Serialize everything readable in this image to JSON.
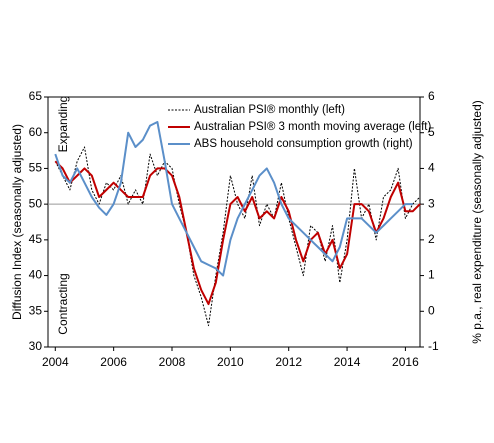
{
  "chart_data": {
    "type": "line",
    "y_label": "Diffusion Index (seasonally adjusted)",
    "y2_label": "% p.a., real expenditure (seasonally adjusted)",
    "annotations": [
      "Expanding",
      "Contracting"
    ],
    "hline": 50,
    "x": [
      2004,
      2004.25,
      2004.5,
      2004.75,
      2005,
      2005.25,
      2005.5,
      2005.75,
      2006,
      2006.25,
      2006.5,
      2006.75,
      2007,
      2007.25,
      2007.5,
      2007.75,
      2008,
      2008.25,
      2008.5,
      2008.75,
      2009,
      2009.25,
      2009.5,
      2009.75,
      2010,
      2010.25,
      2010.5,
      2010.75,
      2011,
      2011.25,
      2011.5,
      2011.75,
      2012,
      2012.25,
      2012.5,
      2012.75,
      2013,
      2013.25,
      2013.5,
      2013.75,
      2014,
      2014.25,
      2014.5,
      2014.75,
      2015,
      2015.25,
      2015.5,
      2015.75,
      2016,
      2016.25,
      2016.5
    ],
    "xlim": [
      2003.75,
      2016.5
    ],
    "xticks": [
      2004,
      2006,
      2008,
      2010,
      2012,
      2014,
      2016
    ],
    "ylim": [
      30,
      65
    ],
    "yticks": [
      30,
      35,
      40,
      45,
      50,
      55,
      60,
      65
    ],
    "y2lim": [
      -1,
      6
    ],
    "y2ticks": [
      -1,
      0,
      1,
      2,
      3,
      4,
      5,
      6
    ],
    "series": [
      {
        "name": "Australian PSI® monthly (left)",
        "color": "#000000",
        "dashed": true,
        "values": [
          56,
          54,
          52,
          56,
          58,
          52,
          50,
          53,
          52,
          54,
          50,
          52,
          50,
          57,
          54,
          56,
          55,
          50,
          46,
          40,
          37,
          33,
          40,
          46,
          54,
          50,
          48,
          54,
          47,
          50,
          48,
          53,
          48,
          44,
          40,
          47,
          46,
          42,
          47,
          39,
          45,
          55,
          48,
          50,
          45,
          51,
          52,
          55,
          48,
          50,
          51
        ]
      },
      {
        "name": "Australian PSI® 3 month moving average (left)",
        "color": "#c00000",
        "values": [
          56,
          55,
          53,
          54,
          55,
          54,
          51,
          52,
          53,
          52,
          51,
          51,
          51,
          54,
          55,
          55,
          54,
          51,
          46,
          41,
          38,
          36,
          39,
          45,
          50,
          51,
          49,
          51,
          48,
          49,
          48,
          51,
          49,
          45,
          42,
          45,
          46,
          43,
          45,
          41,
          43,
          50,
          50,
          49,
          46,
          48,
          51,
          53,
          49,
          49,
          50
        ]
      },
      {
        "name": "ABS household consumption growth (right)",
        "color": "#5b8fc9",
        "axis": "y2",
        "values": [
          4.4,
          3.8,
          3.6,
          4.0,
          3.6,
          3.2,
          2.9,
          2.7,
          3.0,
          3.6,
          5.0,
          4.6,
          4.8,
          5.2,
          5.3,
          4.2,
          3.0,
          2.6,
          2.2,
          1.8,
          1.4,
          1.3,
          1.2,
          1.0,
          2.0,
          2.6,
          3.0,
          3.4,
          3.8,
          4.0,
          3.6,
          3.0,
          2.6,
          2.4,
          2.2,
          2.0,
          1.8,
          1.6,
          1.4,
          1.8,
          2.6,
          2.6,
          2.6,
          2.4,
          2.2,
          2.4,
          2.6,
          2.8,
          3.0,
          3.0,
          null
        ]
      }
    ]
  }
}
